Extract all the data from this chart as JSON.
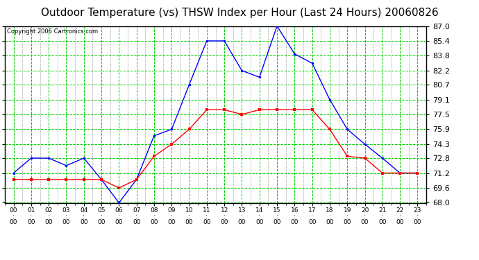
{
  "title": "Outdoor Temperature (vs) THSW Index per Hour (Last 24 Hours) 20060826",
  "copyright": "Copyright 2006 Cartronics.com",
  "hours": [
    "00:00",
    "01:00",
    "02:00",
    "03:00",
    "04:00",
    "05:00",
    "06:00",
    "07:00",
    "08:00",
    "09:00",
    "10:00",
    "11:00",
    "12:00",
    "13:00",
    "14:00",
    "15:00",
    "16:00",
    "17:00",
    "18:00",
    "19:00",
    "20:00",
    "21:00",
    "22:00",
    "23:00"
  ],
  "blue_data": [
    71.2,
    72.8,
    72.8,
    72.0,
    72.8,
    70.5,
    68.0,
    70.5,
    75.2,
    75.9,
    80.7,
    85.4,
    85.4,
    82.2,
    81.5,
    87.0,
    84.0,
    83.0,
    79.1,
    75.9,
    74.3,
    72.8,
    71.2,
    71.2
  ],
  "red_data": [
    70.5,
    70.5,
    70.5,
    70.5,
    70.5,
    70.5,
    69.6,
    70.5,
    73.0,
    74.3,
    75.9,
    78.0,
    78.0,
    77.5,
    78.0,
    78.0,
    78.0,
    78.0,
    75.9,
    73.0,
    72.8,
    71.2,
    71.2,
    71.2
  ],
  "ylim": [
    68.0,
    87.0
  ],
  "yticks": [
    68.0,
    69.6,
    71.2,
    72.8,
    74.3,
    75.9,
    77.5,
    79.1,
    80.7,
    82.2,
    83.8,
    85.4,
    87.0
  ],
  "blue_color": "#0000ff",
  "red_color": "#ff0000",
  "grid_color": "#00cc00",
  "minor_grid_color": "#aaaaaa",
  "bg_color": "#ffffff",
  "plot_bg": "#ffffff",
  "title_fontsize": 11,
  "copyright_fontsize": 6,
  "tick_fontsize": 8
}
